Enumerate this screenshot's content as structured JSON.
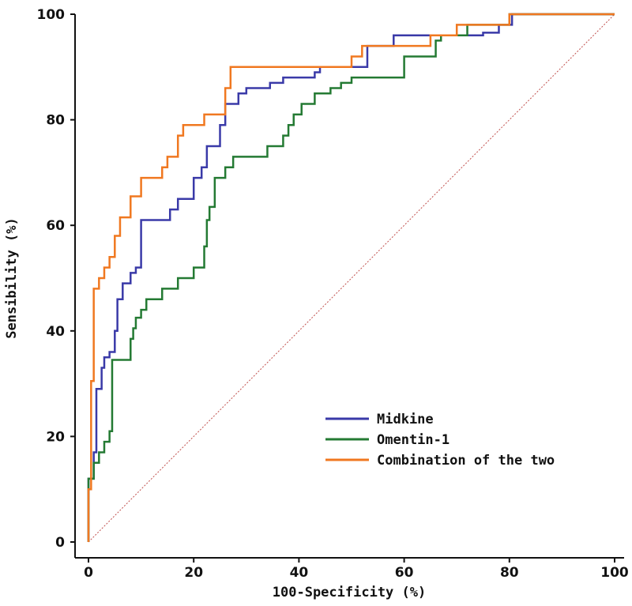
{
  "chart_data": {
    "type": "line",
    "xlabel": "100-Specificity (%)",
    "ylabel": "Sensibility (%)",
    "xlim": [
      0,
      100
    ],
    "ylim": [
      0,
      100
    ],
    "xticks": [
      0,
      20,
      40,
      60,
      80,
      100
    ],
    "yticks": [
      0,
      20,
      40,
      60,
      80,
      100
    ],
    "grid": false,
    "legend_position": "bottom-right",
    "reference_line": {
      "from": [
        0,
        0
      ],
      "to": [
        100,
        100
      ],
      "color": "#c0504d",
      "style": "dotted"
    },
    "series": [
      {
        "name": "Midkine",
        "color": "#3a3aa8",
        "points": [
          [
            0,
            0
          ],
          [
            0,
            12
          ],
          [
            1,
            12
          ],
          [
            1,
            17
          ],
          [
            1.5,
            17
          ],
          [
            1.5,
            29
          ],
          [
            2.5,
            29
          ],
          [
            2.5,
            33
          ],
          [
            3,
            33
          ],
          [
            3,
            35
          ],
          [
            4,
            35
          ],
          [
            4,
            36
          ],
          [
            5,
            36
          ],
          [
            5,
            40
          ],
          [
            5.5,
            40
          ],
          [
            5.5,
            46
          ],
          [
            6.5,
            46
          ],
          [
            6.5,
            49
          ],
          [
            8,
            49
          ],
          [
            8,
            51
          ],
          [
            9,
            51
          ],
          [
            9,
            52
          ],
          [
            10,
            52
          ],
          [
            10,
            61
          ],
          [
            15.5,
            61
          ],
          [
            15.5,
            63
          ],
          [
            17,
            63
          ],
          [
            17,
            65
          ],
          [
            20,
            65
          ],
          [
            20,
            69
          ],
          [
            21.5,
            69
          ],
          [
            21.5,
            71
          ],
          [
            22.5,
            71
          ],
          [
            22.5,
            75
          ],
          [
            25,
            75
          ],
          [
            25,
            79
          ],
          [
            26,
            79
          ],
          [
            26,
            83
          ],
          [
            28.5,
            83
          ],
          [
            28.5,
            85
          ],
          [
            30,
            85
          ],
          [
            30,
            86
          ],
          [
            34.5,
            86
          ],
          [
            34.5,
            87
          ],
          [
            37,
            87
          ],
          [
            37,
            88
          ],
          [
            43,
            88
          ],
          [
            43,
            89
          ],
          [
            44,
            89
          ],
          [
            44,
            90
          ],
          [
            53,
            90
          ],
          [
            53,
            94
          ],
          [
            58,
            94
          ],
          [
            58,
            96
          ],
          [
            75,
            96
          ],
          [
            75,
            96.5
          ],
          [
            78,
            96.5
          ],
          [
            78,
            98
          ],
          [
            80.5,
            98
          ],
          [
            80.5,
            100
          ],
          [
            100,
            100
          ]
        ]
      },
      {
        "name": "Omentin-1",
        "color": "#247a33",
        "points": [
          [
            0,
            0
          ],
          [
            0,
            12
          ],
          [
            1,
            12
          ],
          [
            1,
            15
          ],
          [
            2,
            15
          ],
          [
            2,
            17
          ],
          [
            3,
            17
          ],
          [
            3,
            19
          ],
          [
            4,
            19
          ],
          [
            4,
            21
          ],
          [
            4.5,
            21
          ],
          [
            4.5,
            34.5
          ],
          [
            8,
            34.5
          ],
          [
            8,
            38.5
          ],
          [
            8.5,
            38.5
          ],
          [
            8.5,
            40.5
          ],
          [
            9,
            40.5
          ],
          [
            9,
            42.5
          ],
          [
            10,
            42.5
          ],
          [
            10,
            44
          ],
          [
            11,
            44
          ],
          [
            11,
            46
          ],
          [
            14,
            46
          ],
          [
            14,
            48
          ],
          [
            17,
            48
          ],
          [
            17,
            50
          ],
          [
            20,
            50
          ],
          [
            20,
            52
          ],
          [
            22,
            52
          ],
          [
            22,
            56
          ],
          [
            22.5,
            56
          ],
          [
            22.5,
            61
          ],
          [
            23,
            61
          ],
          [
            23,
            63.5
          ],
          [
            24,
            63.5
          ],
          [
            24,
            69
          ],
          [
            26,
            69
          ],
          [
            26,
            71
          ],
          [
            27.5,
            71
          ],
          [
            27.5,
            73
          ],
          [
            34,
            73
          ],
          [
            34,
            75
          ],
          [
            37,
            75
          ],
          [
            37,
            77
          ],
          [
            38,
            77
          ],
          [
            38,
            79
          ],
          [
            39,
            79
          ],
          [
            39,
            81
          ],
          [
            40.5,
            81
          ],
          [
            40.5,
            83
          ],
          [
            43,
            83
          ],
          [
            43,
            85
          ],
          [
            46,
            85
          ],
          [
            46,
            86
          ],
          [
            48,
            86
          ],
          [
            48,
            87
          ],
          [
            50,
            87
          ],
          [
            50,
            88
          ],
          [
            60,
            88
          ],
          [
            60,
            92
          ],
          [
            66,
            92
          ],
          [
            66,
            95
          ],
          [
            67,
            95
          ],
          [
            67,
            96
          ],
          [
            72,
            96
          ],
          [
            72,
            98
          ],
          [
            80,
            98
          ],
          [
            80,
            100
          ],
          [
            100,
            100
          ]
        ]
      },
      {
        "name": "Combination of the two",
        "color": "#f07820",
        "points": [
          [
            0,
            0
          ],
          [
            0,
            10
          ],
          [
            0.5,
            10
          ],
          [
            0.5,
            30.5
          ],
          [
            1,
            30.5
          ],
          [
            1,
            48
          ],
          [
            2,
            48
          ],
          [
            2,
            50
          ],
          [
            3,
            50
          ],
          [
            3,
            52
          ],
          [
            4,
            52
          ],
          [
            4,
            54
          ],
          [
            5,
            54
          ],
          [
            5,
            58
          ],
          [
            6,
            58
          ],
          [
            6,
            61.5
          ],
          [
            8,
            61.5
          ],
          [
            8,
            65.5
          ],
          [
            10,
            65.5
          ],
          [
            10,
            69
          ],
          [
            14,
            69
          ],
          [
            14,
            71
          ],
          [
            15,
            71
          ],
          [
            15,
            73
          ],
          [
            17,
            73
          ],
          [
            17,
            77
          ],
          [
            18,
            77
          ],
          [
            18,
            79
          ],
          [
            22,
            79
          ],
          [
            22,
            81
          ],
          [
            26,
            81
          ],
          [
            26,
            86
          ],
          [
            27,
            86
          ],
          [
            27,
            90
          ],
          [
            50,
            90
          ],
          [
            50,
            92
          ],
          [
            52,
            92
          ],
          [
            52,
            94
          ],
          [
            65,
            94
          ],
          [
            65,
            96
          ],
          [
            70,
            96
          ],
          [
            70,
            98
          ],
          [
            80,
            98
          ],
          [
            80,
            100
          ],
          [
            100,
            100
          ]
        ]
      }
    ]
  }
}
